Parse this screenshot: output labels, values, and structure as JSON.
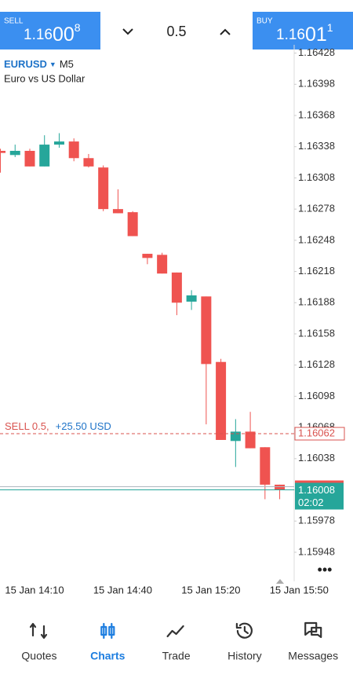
{
  "header": {
    "sell": {
      "label": "SELL",
      "price": {
        "main": "1.16",
        "big": "00",
        "small": "8"
      }
    },
    "lot": "0.5",
    "buy": {
      "label": "BUY",
      "price": {
        "main": "1.16",
        "big": "01",
        "small": "1"
      }
    }
  },
  "chart_data": {
    "type": "candlestick",
    "symbol": "EURUSD",
    "timeframe": "M5",
    "description": "Euro vs US Dollar",
    "categories": [
      null,
      null,
      "15 Jan 14:10",
      null,
      null,
      null,
      null,
      null,
      "15 Jan 14:40",
      null,
      null,
      null,
      null,
      null,
      "15 Jan 15:20",
      null,
      null,
      null,
      null,
      null,
      "15 Jan 15:50"
    ],
    "open": [
      1.16334,
      1.1633,
      1.16334,
      1.16319,
      1.1634,
      1.16343,
      1.16327,
      1.16318,
      1.16278,
      1.16275,
      1.16235,
      1.16234,
      1.16217,
      1.16189,
      1.16194,
      1.16131,
      1.16055,
      1.16064,
      1.16049,
      1.16013,
      null
    ],
    "high": [
      1.16336,
      1.1634,
      1.16336,
      1.16349,
      1.16351,
      1.16346,
      1.16331,
      1.1632,
      1.16297,
      1.16276,
      1.16235,
      1.16236,
      1.16217,
      1.162,
      1.16194,
      1.16134,
      1.16076,
      1.16083,
      1.16049,
      1.16013,
      null
    ],
    "low": [
      1.16313,
      1.16328,
      1.16319,
      1.16319,
      1.16337,
      1.16324,
      1.16318,
      1.16276,
      1.16274,
      1.16252,
      1.16225,
      1.16216,
      1.16176,
      1.16181,
      1.16071,
      1.16056,
      1.1603,
      1.16048,
      1.15999,
      1.15999,
      null
    ],
    "close": [
      1.16332,
      1.16334,
      1.16319,
      1.1634,
      1.16343,
      1.16327,
      1.16319,
      1.16278,
      1.16274,
      1.16252,
      1.16231,
      1.16216,
      1.16188,
      1.16195,
      1.16129,
      1.16056,
      1.16064,
      1.16048,
      1.16013,
      1.16008,
      null
    ],
    "up_color": "#26a69a",
    "down_color": "#ef5350",
    "ylim": [
      1.1592,
      1.16436
    ],
    "yticks": [
      1.16428,
      1.16398,
      1.16368,
      1.16338,
      1.16308,
      1.16278,
      1.16248,
      1.16218,
      1.16188,
      1.16158,
      1.16128,
      1.16098,
      1.16068,
      1.16038,
      1.16008,
      1.15978,
      1.15948
    ],
    "position": {
      "label": "SELL 0.5,",
      "profit": "+25.50 USD",
      "price": 1.16062
    },
    "bid": 1.16008,
    "ask": 1.16011,
    "countdown": "02:02"
  },
  "nav": [
    {
      "label": "Quotes",
      "active": false
    },
    {
      "label": "Charts",
      "active": true
    },
    {
      "label": "Trade",
      "active": false
    },
    {
      "label": "History",
      "active": false
    },
    {
      "label": "Messages",
      "active": false
    }
  ]
}
